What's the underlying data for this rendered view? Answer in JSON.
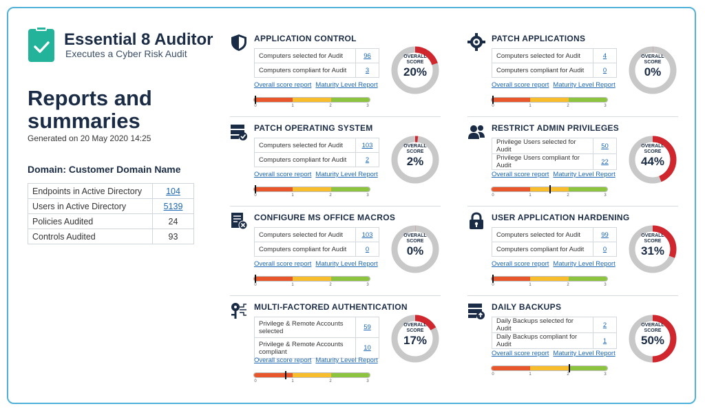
{
  "app": {
    "title": "Essential 8 Auditor",
    "subtitle": "Executes a Cyber Risk Audit"
  },
  "page": {
    "title": "Reports and summaries",
    "generated": "Generated on 20 May 2020 14:25"
  },
  "domain": {
    "label": "Domain: Customer Domain Name"
  },
  "summary": [
    {
      "label": "Endpoints in Active Directory",
      "value": "104",
      "link": true
    },
    {
      "label": "Users in Active Directory",
      "value": "5139",
      "link": true
    },
    {
      "label": "Policies Audited",
      "value": "24",
      "link": false
    },
    {
      "label": "Controls Audited",
      "value": "93",
      "link": false
    }
  ],
  "common": {
    "overall_score_label": "OVERALL SCORE",
    "overall_line1": "OVERALL",
    "overall_line2": "SCORE",
    "link_overall": "Overall score report",
    "link_maturity": "Maturity Level Report",
    "ticks": [
      "0",
      "1",
      "2",
      "3"
    ]
  },
  "colors": {
    "ring_bg": "#c8c8c8",
    "ring_fill": "#d0272f",
    "bar_red": "#e8572b",
    "bar_yellow": "#f7bd2c",
    "bar_green": "#8dc43f"
  },
  "cards": [
    {
      "id": "application-control",
      "title": "APPLICATION CONTROL",
      "icon": "shield-icon",
      "rows": [
        {
          "label": "Computers selected for Audit",
          "value": "96"
        },
        {
          "label": "Computers compliant for Audit",
          "value": "3"
        }
      ],
      "score": "20%",
      "score_fraction": 0.2,
      "maturity": 0.0
    },
    {
      "id": "patch-applications",
      "title": "PATCH APPLICATIONS",
      "icon": "gear-icon",
      "rows": [
        {
          "label": "Computers selected for Audit",
          "value": "4"
        },
        {
          "label": "Computers compliant for Audit",
          "value": "0"
        }
      ],
      "score": "0%",
      "score_fraction": 0.0,
      "maturity": 0.0
    },
    {
      "id": "patch-operating-system",
      "title": "PATCH OPERATING SYSTEM",
      "icon": "server-check-icon",
      "rows": [
        {
          "label": "Computers selected for Audit",
          "value": "103"
        },
        {
          "label": "Computers compliant for Audit",
          "value": "2"
        }
      ],
      "score": "2%",
      "score_fraction": 0.02,
      "maturity": 0.0
    },
    {
      "id": "restrict-admin-privileges",
      "title": "RESTRICT ADMIN PRIVILEGES",
      "icon": "users-icon",
      "rows": [
        {
          "label": "Privilege Users selected for Audit",
          "value": "50"
        },
        {
          "label": "Privilege Users compliant for Audit",
          "value": "22"
        }
      ],
      "score": "44%",
      "score_fraction": 0.44,
      "maturity": 1.5
    },
    {
      "id": "configure-ms-office-macros",
      "title": "CONFIGURE MS OFFICE MACROS",
      "icon": "document-x-icon",
      "rows": [
        {
          "label": "Computers selected for Audit",
          "value": "103"
        },
        {
          "label": "Computers compliant for Audit",
          "value": "0"
        }
      ],
      "score": "0%",
      "score_fraction": 0.0,
      "maturity": 0.0
    },
    {
      "id": "user-application-hardening",
      "title": "USER APPLICATION HARDENING",
      "icon": "lock-icon",
      "rows": [
        {
          "label": "Computers selected for Audit",
          "value": "99"
        },
        {
          "label": "Computers compliant for Audit",
          "value": "0"
        }
      ],
      "score": "31%",
      "score_fraction": 0.31,
      "maturity": 0.0
    },
    {
      "id": "multi-factored-authentication",
      "title": "MULTI-FACTORED AUTHENTICATION",
      "icon": "key-circuit-icon",
      "rows": [
        {
          "label": "Privilege & Remote Accounts selected",
          "value": "59"
        },
        {
          "label": "Privilege & Remote Accounts compliant",
          "value": "10"
        }
      ],
      "score": "17%",
      "score_fraction": 0.17,
      "maturity": 0.8
    },
    {
      "id": "daily-backups",
      "title": "DAILY BACKUPS",
      "icon": "server-upload-icon",
      "rows": [
        {
          "label": "Daily Backups selected for Audit",
          "value": "2"
        },
        {
          "label": "Daily Backups compliant for Audit",
          "value": "1"
        }
      ],
      "score": "50%",
      "score_fraction": 0.5,
      "maturity": 2.0
    }
  ]
}
